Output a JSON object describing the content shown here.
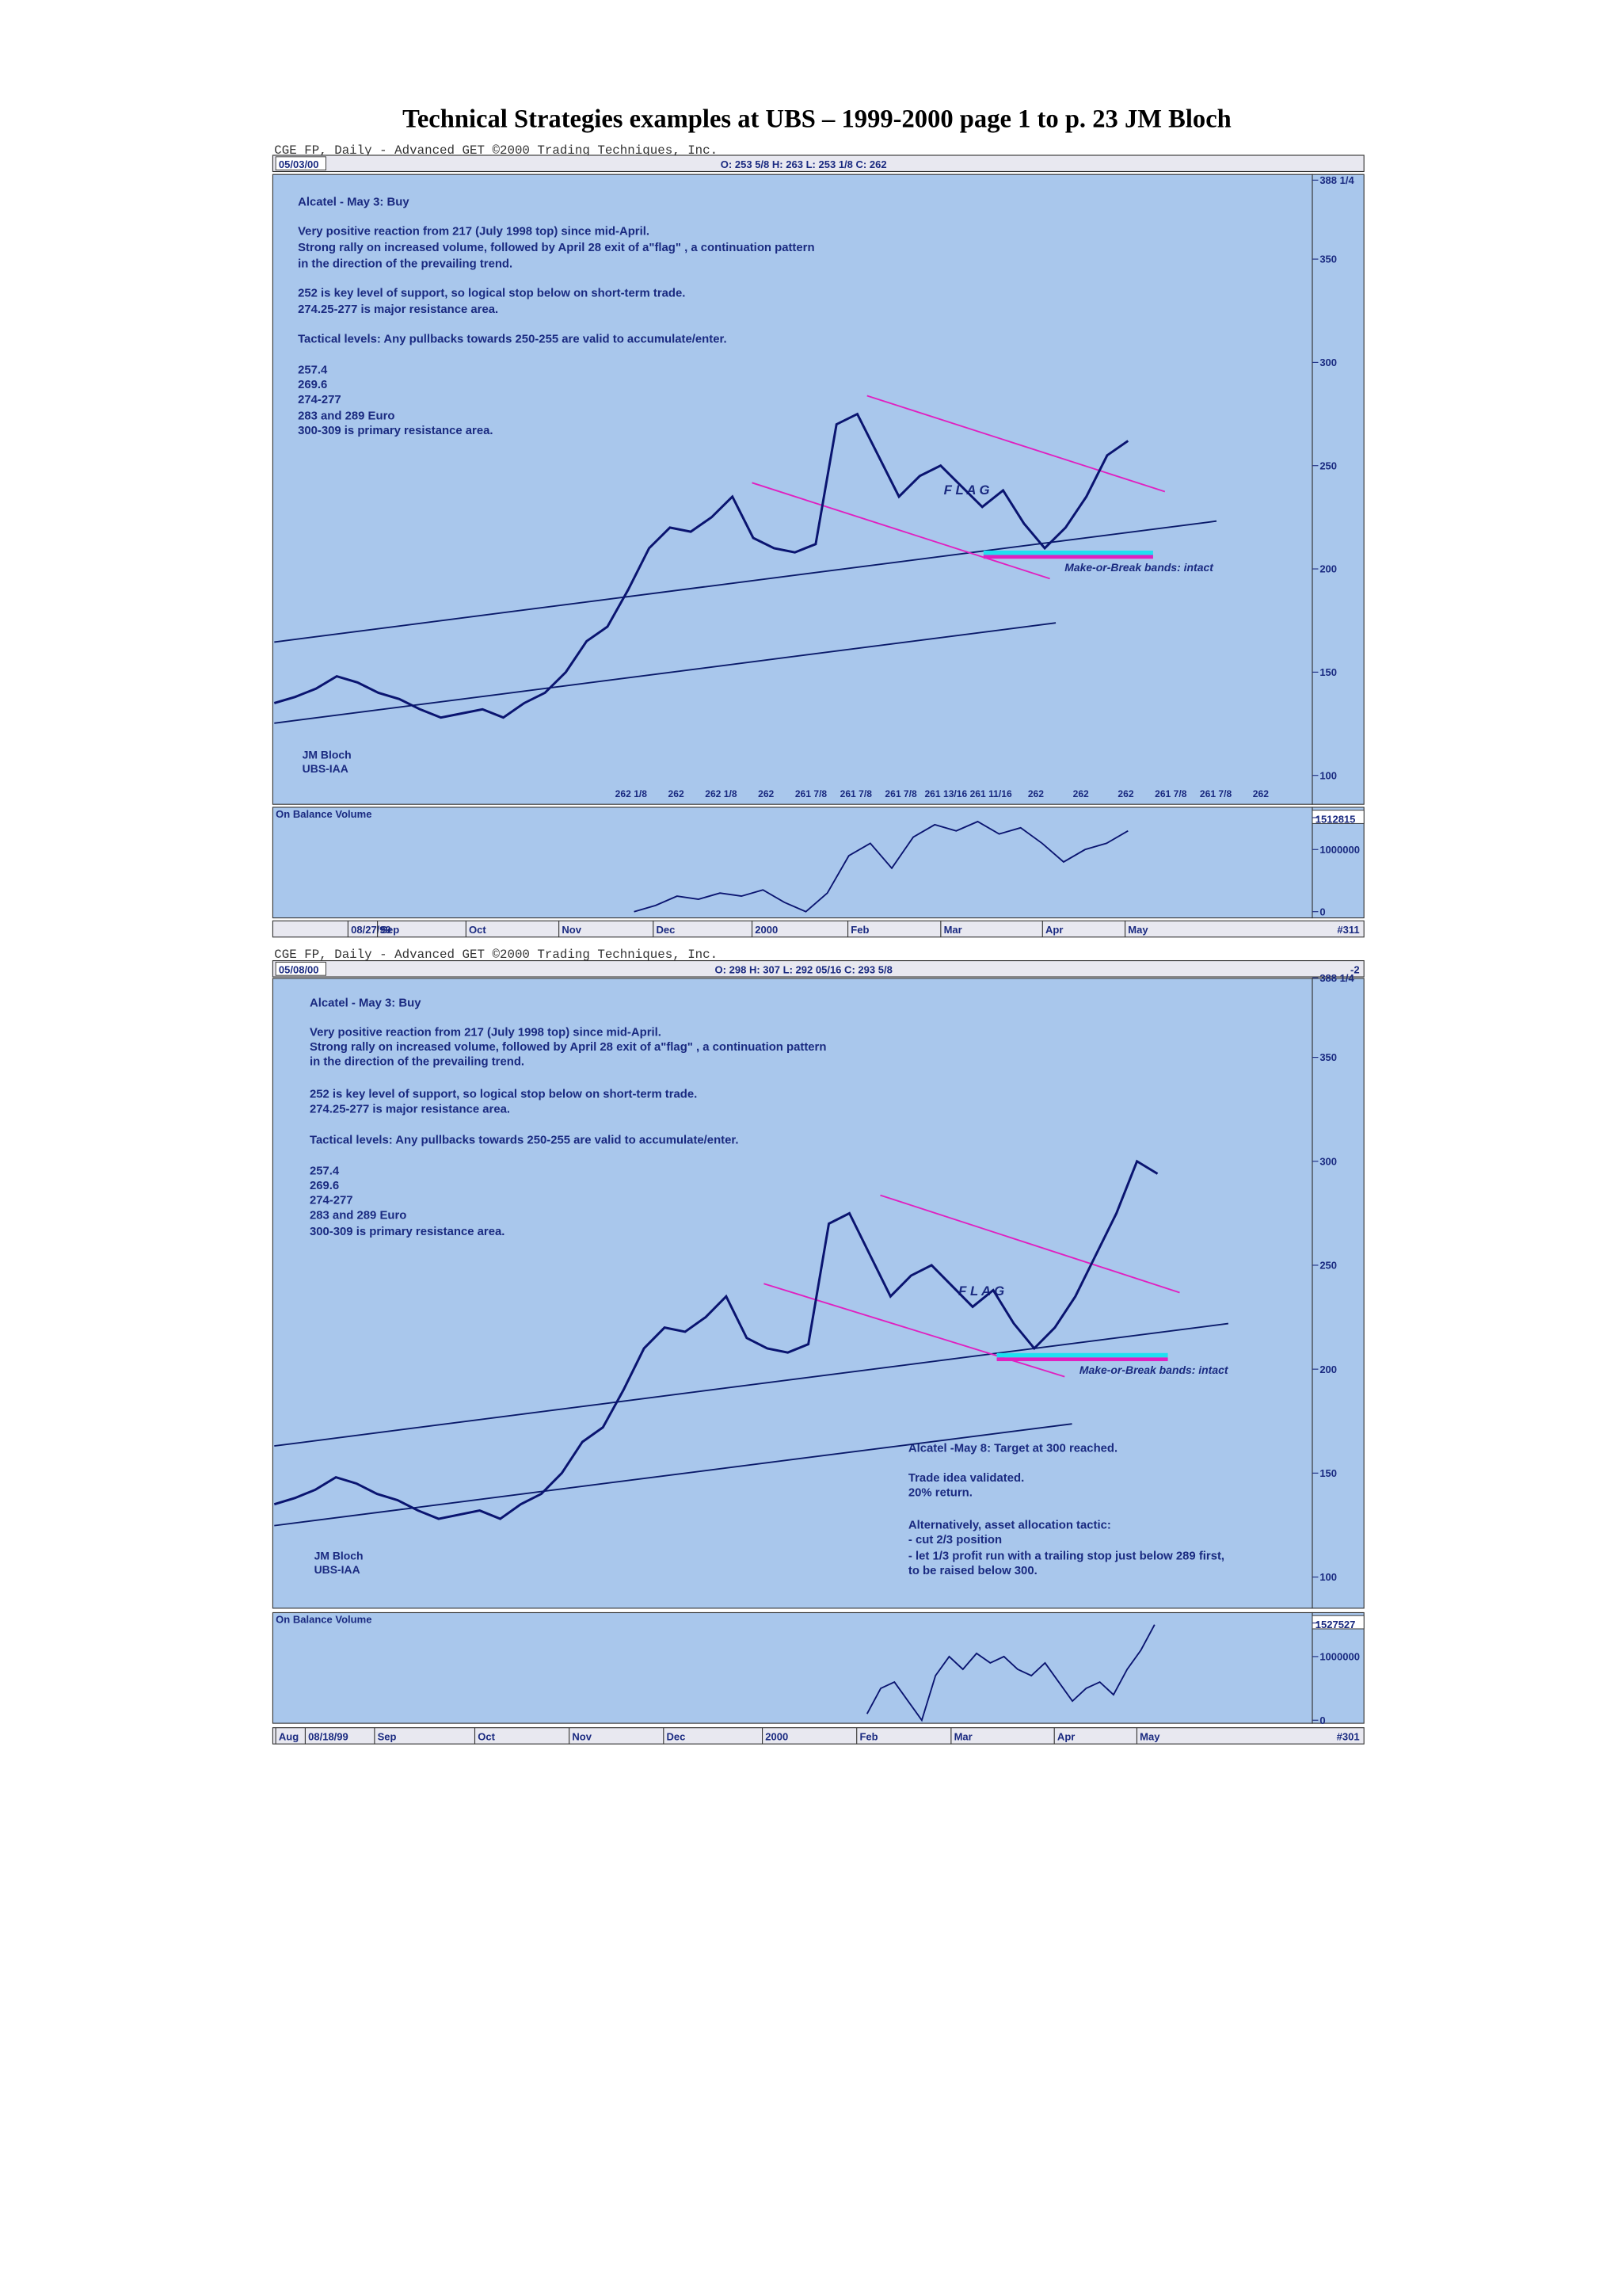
{
  "title": "Technical Strategies examples at UBS – 1999-2000  page 1 to p. 23  JM Bloch",
  "charts": [
    {
      "header": "CGE FP, Daily - Advanced GET ©2000 Trading Techniques, Inc.",
      "date": "05/03/00",
      "ohlc": "O: 253 5/8   H: 263   L: 253 1/8   C: 262",
      "corner": null,
      "notes": [
        "Alcatel - May 3: Buy",
        "Very positive reaction from 217 (July 1998 top) since mid-April.",
        "Strong rally on increased volume, followed by April 28 exit of a\"flag\" , a continuation pattern",
        "in the direction of the prevailing trend.",
        "252 is key level of support, so logical stop below on short-term trade.",
        "274.25-277 is major resistance area.",
        "Tactical levels: Any pullbacks towards 250-255 are valid to accumulate/enter.",
        "257.4",
        "269.6",
        "274-277",
        "283 and 289 Euro",
        "300-309 is primary resistance area."
      ],
      "extra_notes": [],
      "flag": "F L A G",
      "band_label": "Make-or-Break bands: intact",
      "signature": [
        "JM Bloch",
        "UBS-IAA"
      ],
      "bottom_values": [
        "262 1/8",
        "262",
        "262 1/8",
        "262",
        "261 7/8",
        "261 7/8",
        "261 7/8",
        "261 13/16",
        "261 11/16",
        "262",
        "262",
        "262",
        "261 7/8",
        "261 7/8",
        "262"
      ],
      "price": {
        "type": "line",
        "values": [
          135,
          138,
          142,
          148,
          145,
          140,
          137,
          132,
          128,
          130,
          132,
          128,
          135,
          140,
          150,
          165,
          172,
          190,
          210,
          220,
          218,
          225,
          235,
          215,
          210,
          208,
          212,
          270,
          275,
          255,
          235,
          245,
          250,
          240,
          230,
          238,
          222,
          210,
          220,
          235,
          255,
          262
        ],
        "ylim": [
          86,
          391
        ],
        "yticks": [
          {
            "value": 388.25,
            "label": "388 1/4"
          },
          350,
          300,
          250,
          200,
          150,
          100
        ]
      },
      "obv": {
        "label": "On Balance Volume",
        "type": "line",
        "values": [
          0,
          100000,
          250000,
          200000,
          300000,
          250000,
          350000,
          150000,
          0,
          300000,
          900000,
          1100000,
          700000,
          1200000,
          1400000,
          1300000,
          1450000,
          1250000,
          1350000,
          1100000,
          800000,
          1000000,
          1100000,
          1300000
        ],
        "ylim": [
          -100000,
          1680000
        ],
        "yticks": [
          1512815,
          1000000,
          0
        ]
      },
      "date_axis": [
        "08/27/99",
        "Sep",
        "Oct",
        "Nov",
        "Dec",
        "2000",
        "Feb",
        "Mar",
        "Apr",
        "May"
      ],
      "bar_id": "#311"
    },
    {
      "header": "CGE FP, Daily - Advanced GET ©2000 Trading Techniques, Inc.",
      "date": "05/08/00",
      "ohlc": "O: 298   H: 307   L: 292 05/16   C: 293 5/8",
      "corner": "-2",
      "notes": [
        "Alcatel - May 3: Buy",
        "Very positive reaction from 217 (July 1998 top) since mid-April.",
        "Strong rally on increased volume, followed by April 28 exit of a\"flag\" , a continuation pattern",
        "in the direction of the prevailing trend.",
        "252 is key level of support, so logical stop below on short-term trade.",
        "274.25-277 is major resistance area.",
        "Tactical levels: Any pullbacks towards 250-255 are valid to accumulate/enter.",
        "257.4",
        "269.6",
        "274-277",
        "283 and 289 Euro",
        "300-309 is primary resistance area."
      ],
      "extra_notes": [
        "Alcatel -May 8: Target at 300 reached.",
        "Trade idea validated.",
        "20% return.",
        "Alternatively, asset allocation tactic:",
        "- cut 2/3 position",
        "- let 1/3 profit run with a trailing stop just below 289 first,",
        "to be raised below 300."
      ],
      "flag": "F L A G",
      "band_label": "Make-or-Break bands: intact",
      "signature": [
        "JM Bloch",
        "UBS-IAA"
      ],
      "bottom_values": [],
      "price": {
        "type": "line",
        "values": [
          135,
          138,
          142,
          148,
          145,
          140,
          137,
          132,
          128,
          130,
          132,
          128,
          135,
          140,
          150,
          165,
          172,
          190,
          210,
          220,
          218,
          225,
          235,
          215,
          210,
          208,
          212,
          270,
          275,
          255,
          235,
          245,
          250,
          240,
          230,
          238,
          222,
          210,
          220,
          235,
          255,
          275,
          300,
          294
        ],
        "ylim": [
          85,
          388
        ],
        "yticks": [
          {
            "value": 388.25,
            "label": "388 1/4"
          },
          350,
          300,
          250,
          200,
          150,
          100
        ]
      },
      "obv": {
        "label": "On Balance Volume",
        "type": "line",
        "values": [
          100000,
          500000,
          600000,
          300000,
          0,
          700000,
          1000000,
          800000,
          1050000,
          900000,
          1000000,
          800000,
          700000,
          900000,
          600000,
          300000,
          500000,
          600000,
          400000,
          800000,
          1100000,
          1500000
        ],
        "ylim": [
          -48000,
          1690000
        ],
        "yticks": [
          1527527,
          1000000,
          0
        ]
      },
      "date_axis": [
        "Aug",
        "08/18/99",
        "Sep",
        "Oct",
        "Nov",
        "Dec",
        "2000",
        "Feb",
        "Mar",
        "Apr",
        "May"
      ],
      "bar_id": "#301"
    }
  ]
}
